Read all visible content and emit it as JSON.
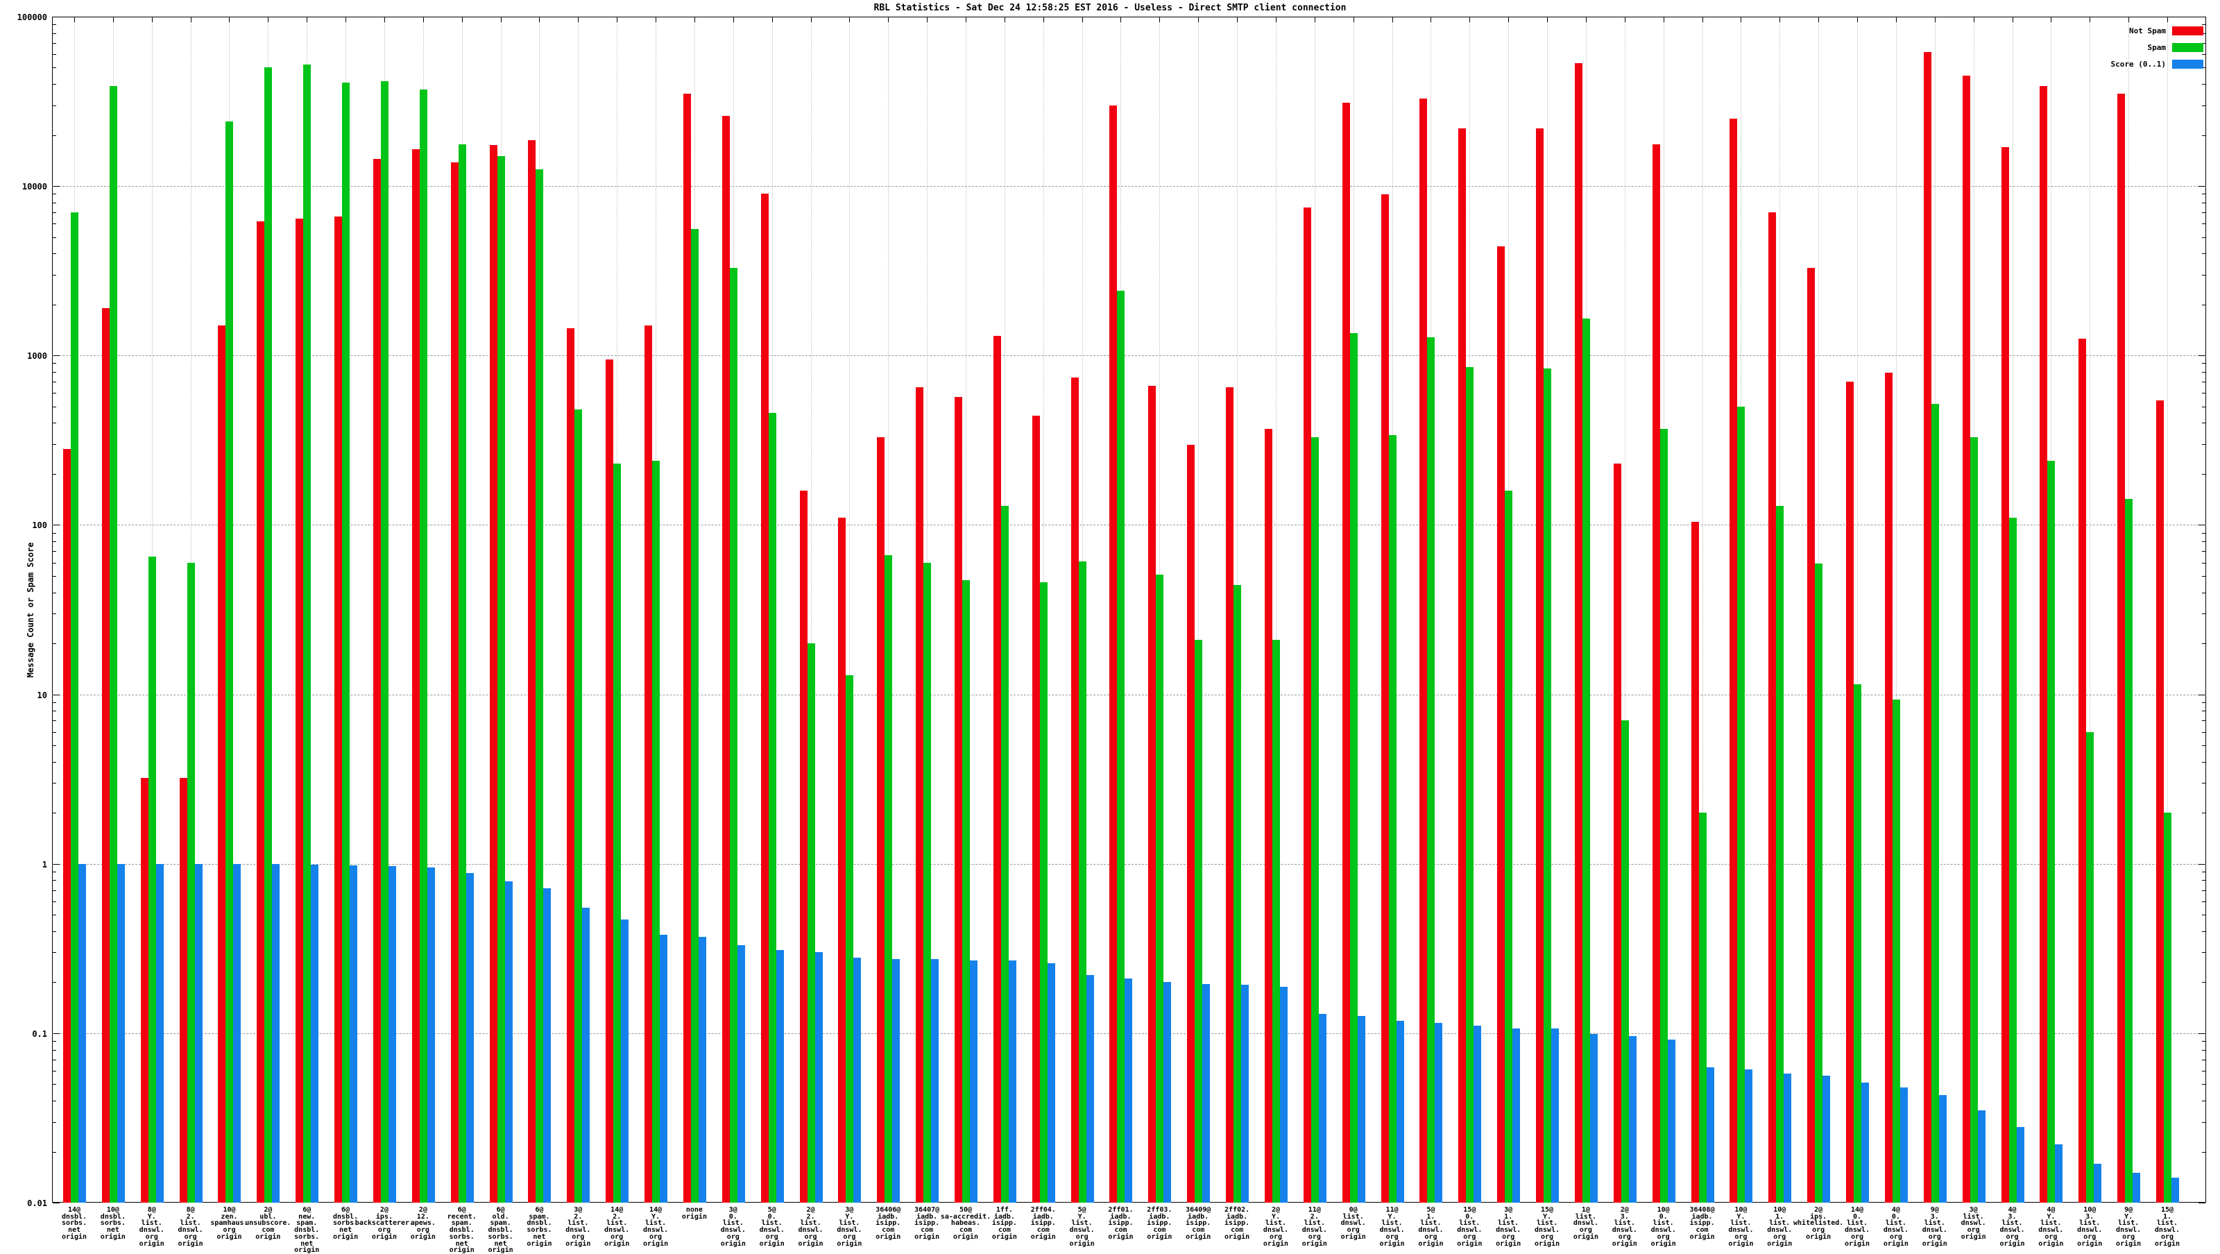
{
  "chart_data": {
    "type": "bar",
    "title": "RBL Statistics - Sat Dec 24 12:58:25 EST 2016 - Useless - Direct SMTP client connection",
    "ylabel": "Message Count or Spam Score",
    "xlabel": "",
    "yscale": "log",
    "ylim": [
      0.01,
      100000
    ],
    "ytick_labels": [
      "100000",
      "10000",
      "1000",
      "100",
      "10",
      "1",
      "0.1",
      "0.01"
    ],
    "grid": true,
    "legend_position": "top-right",
    "colors": {
      "not_spam": "#f10010",
      "spam": "#00c418",
      "score": "#1482ea",
      "grid_major": "#9a9a9a",
      "grid_minor": "#c0c0c0"
    },
    "legend": [
      "Not Spam",
      "Spam",
      "Score (0..1)"
    ],
    "categories": [
      "14@\ndnsbl.\nsorbs.\nnet\norigin",
      "10@\ndnsbl.\nsorbs.\nnet\norigin",
      "8@\nY.\nlist.\ndnswl.\norg\norigin",
      "8@\n2.\nlist.\ndnswl.\norg\norigin",
      "10@\nzen.\nspamhaus.\norg\norigin",
      "2@\nubl.\nunsubscore.\ncom\norigin",
      "6@\nnew.\nspam.\ndnsbl.\nsorbs.\nnet\norigin",
      "6@\ndnsbl.\nsorbs.\nnet\norigin",
      "2@\nips.\nbackscatterer.\norg\norigin",
      "2@\n12.\napews.\norg\norigin",
      "6@\nrecent.\nspam.\ndnsbl.\nsorbs.\nnet\norigin",
      "6@\nold.\nspam.\ndnsbl.\nsorbs.\nnet\norigin",
      "6@\nspam.\ndnsbl.\nsorbs.\nnet\norigin",
      "3@\n2.\nlist.\ndnswl.\norg\norigin",
      "14@\n2.\nlist.\ndnswl.\norg\norigin",
      "14@\nY.\nlist.\ndnswl.\norg\norigin",
      "none\norigin",
      "3@\n0.\nlist.\ndnswl.\norg\norigin",
      "5@\n0.\nlist.\ndnswl.\norg\norigin",
      "2@\n2.\nlist.\ndnswl.\norg\norigin",
      "3@\nY.\nlist.\ndnswl.\norg\norigin",
      "36406@\niadb.\nisipp.\ncom\norigin",
      "36407@\niadb.\nisipp.\ncom\norigin",
      "50@\nsa-accredit.\nhabeas.\ncom\norigin",
      "1ff.\niadb.\nisipp.\ncom\norigin",
      "2ff04.\niadb.\nisipp.\ncom\norigin",
      "5@\nY.\nlist.\ndnswl.\norg\norigin",
      "2ff01.\niadb.\nisipp.\ncom\norigin",
      "2ff03.\niadb.\nisipp.\ncom\norigin",
      "36409@\niadb.\nisipp.\ncom\norigin",
      "2ff02.\niadb.\nisipp.\ncom\norigin",
      "2@\nY.\nlist.\ndnswl.\norg\norigin",
      "11@\n2.\nlist.\ndnswl.\norg\norigin",
      "0@\nlist.\ndnswl.\norg\norigin",
      "11@\nY.\nlist.\ndnswl.\norg\norigin",
      "5@\n1.\nlist.\ndnswl.\norg\norigin",
      "15@\n0.\nlist.\ndnswl.\norg\norigin",
      "3@\n1.\nlist.\ndnswl.\norg\norigin",
      "15@\nY.\nlist.\ndnswl.\norg\norigin",
      "1@\nlist.\ndnswl.\norg\norigin",
      "2@\n3.\nlist.\ndnswl.\norg\norigin",
      "10@\n0.\nlist.\ndnswl.\norg\norigin",
      "36408@\niadb.\nisipp.\ncom\norigin",
      "10@\nY.\nlist.\ndnswl.\norg\norigin",
      "10@\n1.\nlist.\ndnswl.\norg\norigin",
      "2@\nips.\nwhitelisted.\norg\norigin",
      "14@\n0.\nlist.\ndnswl.\norg\norigin",
      "4@\n0.\nlist.\ndnswl.\norg\norigin",
      "9@\n3.\nlist.\ndnswl.\norg\norigin",
      "3@\nlist.\ndnswl.\norg\norigin",
      "4@\n3.\nlist.\ndnswl.\norg\norigin",
      "4@\nY.\nlist.\ndnswl.\norg\norigin",
      "10@\n3.\nlist.\ndnswl.\norg\norigin",
      "9@\nY.\nlist.\ndnswl.\norg\norigin",
      "15@\n1.\nlist.\ndnswl.\norg\norigin"
    ],
    "series": [
      {
        "name": "Not Spam",
        "values": [
          280,
          1900,
          3.2,
          3.2,
          1500,
          6200,
          6400,
          6600,
          14500,
          16500,
          13800,
          17500,
          18700,
          1450,
          950,
          1500,
          35000,
          26000,
          9000,
          160,
          110,
          330,
          650,
          570,
          1300,
          440,
          740,
          30000,
          665,
          296,
          650,
          370,
          7500,
          31000,
          8900,
          33000,
          22000,
          4400,
          22000,
          53000,
          230,
          17700,
          104,
          25000,
          7000,
          3300,
          700,
          790,
          62000,
          45000,
          17000,
          39000,
          1260,
          35000,
          545
        ]
      },
      {
        "name": "Spam",
        "values": [
          7000,
          39000,
          65,
          60,
          24000,
          50000,
          52000,
          41000,
          41500,
          37000,
          17600,
          15000,
          12500,
          480,
          230,
          240,
          5600,
          3300,
          460,
          20,
          13,
          66,
          60,
          47,
          130,
          46,
          61,
          2400,
          51,
          21,
          44,
          21,
          330,
          1360,
          340,
          1280,
          855,
          160,
          840,
          1660,
          7,
          370,
          2,
          500,
          130,
          59,
          11.5,
          9.3,
          520,
          330,
          110,
          240,
          6,
          143,
          2
        ]
      },
      {
        "name": "Score (0..1)",
        "values": [
          1,
          1,
          1,
          1,
          1,
          1,
          0.99,
          0.98,
          0.97,
          0.95,
          0.88,
          0.79,
          0.72,
          0.55,
          0.47,
          0.38,
          0.37,
          0.33,
          0.31,
          0.3,
          0.28,
          0.275,
          0.275,
          0.27,
          0.27,
          0.26,
          0.22,
          0.21,
          0.2,
          0.195,
          0.193,
          0.187,
          0.13,
          0.126,
          0.118,
          0.115,
          0.111,
          0.107,
          0.107,
          0.099,
          0.096,
          0.092,
          0.063,
          0.061,
          0.058,
          0.056,
          0.051,
          0.048,
          0.043,
          0.035,
          0.028,
          0.022,
          0.017,
          0.015,
          0.014
        ]
      }
    ]
  }
}
